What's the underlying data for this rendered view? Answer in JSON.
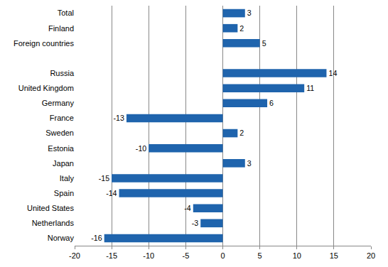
{
  "chart_data": {
    "type": "bar",
    "orientation": "horizontal",
    "categories": [
      "Total",
      "Finland",
      "Foreign countries",
      null,
      "Russia",
      "United Kingdom",
      "Germany",
      "France",
      "Sweden",
      "Estonia",
      "Japan",
      "Italy",
      "Spain",
      "United States",
      "Netherlands",
      "Norway"
    ],
    "values": [
      3,
      2,
      5,
      null,
      14,
      11,
      6,
      -13,
      2,
      -10,
      3,
      -15,
      -14,
      -4,
      -3,
      -16
    ],
    "color": "#1f64ad",
    "xlim": [
      -20,
      20
    ],
    "xticks": [
      -20,
      -15,
      -10,
      -5,
      0,
      5,
      10,
      15,
      20
    ],
    "grid": true,
    "data_labels": true
  }
}
